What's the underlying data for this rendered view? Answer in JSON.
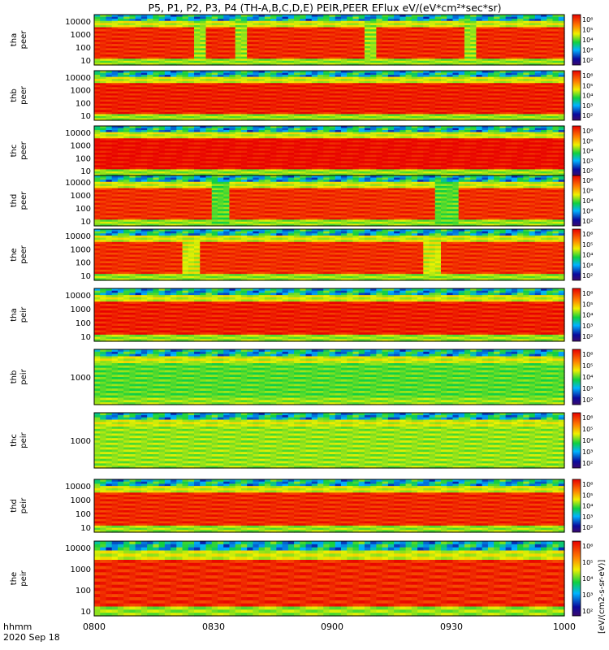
{
  "chart_data": {
    "type": "heatmap",
    "title": "P5, P1, P2, P3, P4 (TH-A,B,C,D,E) PEIR,PEER EFlux eV/(eV*cm²*sec*sr)",
    "x_ticks": [
      "0800",
      "0830",
      "0900",
      "0930",
      "1000"
    ],
    "x_tick_minutes": [
      0,
      30,
      60,
      90,
      120
    ],
    "time_label": "hhmm",
    "date_label": "2020 Sep 18",
    "colorbar_ticks": [
      "10⁶",
      "10⁵",
      "10⁴",
      "10³",
      "10²"
    ],
    "colorbar_label": "[eV/(cm2-s-sr-eV)]",
    "panels": [
      {
        "probe": "tha",
        "instrument": "peer",
        "yticks": [
          "10000",
          "1000",
          "100",
          "10"
        ],
        "gaps": [
          [
            17,
            18
          ],
          [
            24,
            25
          ],
          [
            46,
            47
          ],
          [
            63,
            64
          ]
        ],
        "core": 0.93,
        "min_core": 0.55
      },
      {
        "probe": "thb",
        "instrument": "peer",
        "yticks": [
          "10000",
          "1000",
          "100",
          "10"
        ],
        "gaps": [],
        "core": 0.95,
        "min_core": 0.2
      },
      {
        "probe": "thc",
        "instrument": "peer",
        "yticks": [
          "10000",
          "1000",
          "100",
          "10"
        ],
        "gaps": [],
        "core": 0.98,
        "min_core": 0.8
      },
      {
        "probe": "thd",
        "instrument": "peer",
        "yticks": [
          "10000",
          "1000",
          "100",
          "10"
        ],
        "gaps": [
          [
            20,
            22
          ],
          [
            58,
            61
          ]
        ],
        "core": 0.92,
        "min_core": 0.5
      },
      {
        "probe": "the",
        "instrument": "peer",
        "yticks": [
          "10000",
          "1000",
          "100",
          "10"
        ],
        "gaps": [
          [
            15,
            17
          ],
          [
            56,
            58
          ]
        ],
        "core": 0.92,
        "min_core": 0.6
      },
      {
        "probe": "tha",
        "instrument": "peir",
        "yticks": [
          "10000",
          "1000",
          "100",
          "10"
        ],
        "gaps": [],
        "core": 0.95,
        "min_core": 0.7
      },
      {
        "probe": "thb",
        "instrument": "peir",
        "yticks": [
          "1000"
        ],
        "gaps": [],
        "core": 0.5,
        "min_core": 0.3
      },
      {
        "probe": "thc",
        "instrument": "peir",
        "yticks": [
          "1000"
        ],
        "gaps": [],
        "core": 0.55,
        "min_core": 0.5
      },
      {
        "probe": "thd",
        "instrument": "peir",
        "yticks": [
          "10000",
          "1000",
          "100",
          "10"
        ],
        "gaps": [],
        "core": 0.93,
        "min_core": 0.7
      },
      {
        "probe": "the",
        "instrument": "peir",
        "yticks": [
          "10000",
          "1000",
          "100",
          "10"
        ],
        "gaps": [],
        "core": 0.93,
        "min_core": 0.7
      }
    ]
  }
}
